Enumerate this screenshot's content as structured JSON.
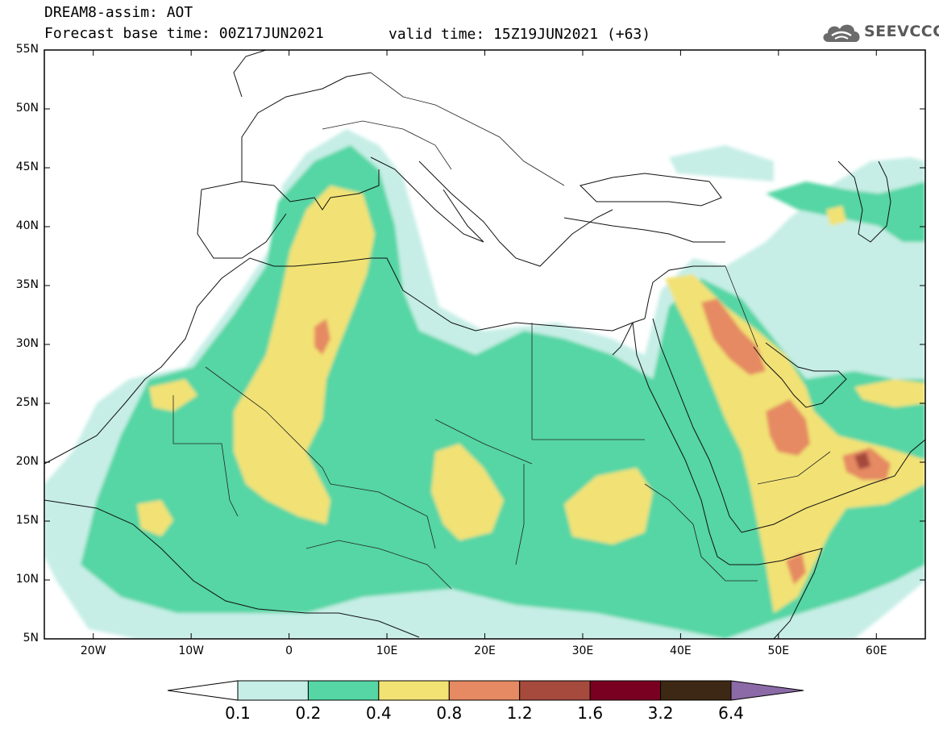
{
  "header": {
    "title": "DREAM8-assim: AOT",
    "base_time": "Forecast base time: 00Z17JUN2021",
    "valid_time": "valid time: 15Z19JUN2021 (+63)"
  },
  "logo": {
    "text": "SEEVCCC",
    "icon": "cloud-icon"
  },
  "map": {
    "lon_labels": [
      "20W",
      "10W",
      "0",
      "10E",
      "20E",
      "30E",
      "40E",
      "50E",
      "60E"
    ],
    "lat_labels": [
      "55N",
      "50N",
      "45N",
      "40N",
      "35N",
      "30N",
      "25N",
      "20N",
      "15N",
      "10N",
      "5N"
    ],
    "lon_range": [
      -25,
      65
    ],
    "lat_range": [
      5,
      55
    ]
  },
  "colorbar": {
    "labels": [
      "0.1",
      "0.2",
      "0.4",
      "0.8",
      "1.2",
      "1.6",
      "3.2",
      "6.4"
    ],
    "colors": [
      "#ffffff",
      "#c6eee6",
      "#55d6a4",
      "#f2e274",
      "#e58a62",
      "#a64a3e",
      "#7a0022",
      "#3c2814",
      "#8c6aa8"
    ]
  }
}
